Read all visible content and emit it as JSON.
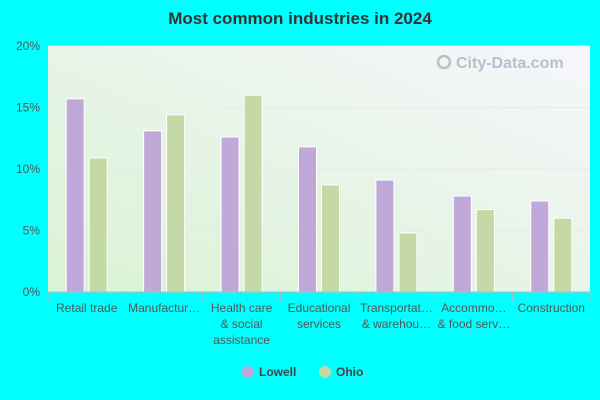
{
  "colors": {
    "background": "#00ffff",
    "plot_gradient_top_right": "#f6f6fb",
    "plot_gradient_bottom_left": "#d9f3d4",
    "lowell": "#c0a8d8",
    "ohio": "#c4d9a6",
    "axis": "#bbbbbb",
    "text": "#555555"
  },
  "watermark": "City-Data.com",
  "chart_data": {
    "type": "bar",
    "title": "Most common industries in 2024",
    "xlabel": "",
    "ylabel": "",
    "ylim": [
      0,
      20
    ],
    "yticks": [
      {
        "value": 0,
        "label": "0%"
      },
      {
        "value": 5,
        "label": "5%"
      },
      {
        "value": 10,
        "label": "10%"
      },
      {
        "value": 15,
        "label": "15%"
      },
      {
        "value": 20,
        "label": "20%"
      }
    ],
    "grid": true,
    "legend_position": "bottom-center",
    "categories": [
      [
        "Retail trade"
      ],
      [
        "Manufactur…"
      ],
      [
        "Health care",
        "& social",
        "assistance"
      ],
      [
        "Educational",
        "services"
      ],
      [
        "Transportat…",
        "& warehou…"
      ],
      [
        "Accommo…",
        "& food serv…"
      ],
      [
        "Construction"
      ]
    ],
    "series": [
      {
        "name": "Lowell",
        "color": "#c0a8d8",
        "values": [
          15.7,
          13.1,
          12.6,
          11.8,
          9.1,
          7.8,
          7.4
        ]
      },
      {
        "name": "Ohio",
        "color": "#c4d9a6",
        "values": [
          10.9,
          14.4,
          16.0,
          8.7,
          4.8,
          6.7,
          6.0
        ]
      }
    ]
  }
}
